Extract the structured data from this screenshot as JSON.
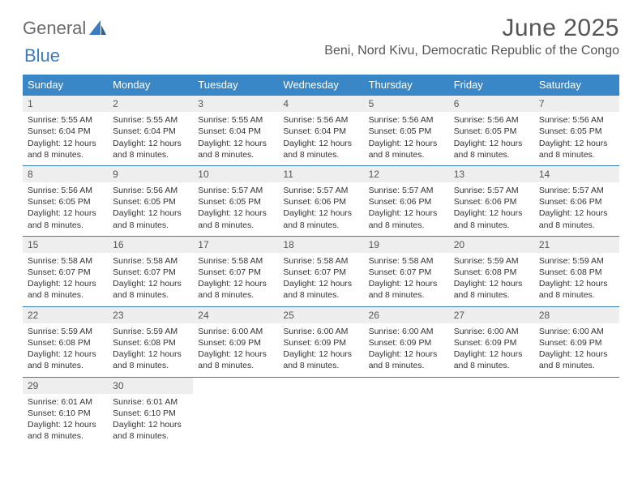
{
  "brand": {
    "name_a": "General",
    "name_b": "Blue"
  },
  "colors": {
    "header_bg": "#3a87c8",
    "header_text": "#ffffff",
    "rule": "#3a7cb8",
    "daynum_bg": "#eeeeee",
    "body_text": "#333333",
    "title_text": "#555555",
    "brand_gray": "#6b6b6b",
    "brand_blue": "#3a7cc4",
    "page_bg": "#ffffff"
  },
  "title": "June 2025",
  "location": "Beni, Nord Kivu, Democratic Republic of the Congo",
  "day_names": [
    "Sunday",
    "Monday",
    "Tuesday",
    "Wednesday",
    "Thursday",
    "Friday",
    "Saturday"
  ],
  "labels": {
    "sunrise": "Sunrise:",
    "sunset": "Sunset:",
    "daylight_a": "Daylight:",
    "daylight_b_prefix": "and",
    "daylight_hours_word": "hours",
    "daylight_minutes_word": "minutes."
  },
  "weeks": [
    [
      {
        "n": 1,
        "sunrise": "5:55 AM",
        "sunset": "6:04 PM",
        "dl_h": 12,
        "dl_m": 8
      },
      {
        "n": 2,
        "sunrise": "5:55 AM",
        "sunset": "6:04 PM",
        "dl_h": 12,
        "dl_m": 8
      },
      {
        "n": 3,
        "sunrise": "5:55 AM",
        "sunset": "6:04 PM",
        "dl_h": 12,
        "dl_m": 8
      },
      {
        "n": 4,
        "sunrise": "5:56 AM",
        "sunset": "6:04 PM",
        "dl_h": 12,
        "dl_m": 8
      },
      {
        "n": 5,
        "sunrise": "5:56 AM",
        "sunset": "6:05 PM",
        "dl_h": 12,
        "dl_m": 8
      },
      {
        "n": 6,
        "sunrise": "5:56 AM",
        "sunset": "6:05 PM",
        "dl_h": 12,
        "dl_m": 8
      },
      {
        "n": 7,
        "sunrise": "5:56 AM",
        "sunset": "6:05 PM",
        "dl_h": 12,
        "dl_m": 8
      }
    ],
    [
      {
        "n": 8,
        "sunrise": "5:56 AM",
        "sunset": "6:05 PM",
        "dl_h": 12,
        "dl_m": 8
      },
      {
        "n": 9,
        "sunrise": "5:56 AM",
        "sunset": "6:05 PM",
        "dl_h": 12,
        "dl_m": 8
      },
      {
        "n": 10,
        "sunrise": "5:57 AM",
        "sunset": "6:05 PM",
        "dl_h": 12,
        "dl_m": 8
      },
      {
        "n": 11,
        "sunrise": "5:57 AM",
        "sunset": "6:06 PM",
        "dl_h": 12,
        "dl_m": 8
      },
      {
        "n": 12,
        "sunrise": "5:57 AM",
        "sunset": "6:06 PM",
        "dl_h": 12,
        "dl_m": 8
      },
      {
        "n": 13,
        "sunrise": "5:57 AM",
        "sunset": "6:06 PM",
        "dl_h": 12,
        "dl_m": 8
      },
      {
        "n": 14,
        "sunrise": "5:57 AM",
        "sunset": "6:06 PM",
        "dl_h": 12,
        "dl_m": 8
      }
    ],
    [
      {
        "n": 15,
        "sunrise": "5:58 AM",
        "sunset": "6:07 PM",
        "dl_h": 12,
        "dl_m": 8
      },
      {
        "n": 16,
        "sunrise": "5:58 AM",
        "sunset": "6:07 PM",
        "dl_h": 12,
        "dl_m": 8
      },
      {
        "n": 17,
        "sunrise": "5:58 AM",
        "sunset": "6:07 PM",
        "dl_h": 12,
        "dl_m": 8
      },
      {
        "n": 18,
        "sunrise": "5:58 AM",
        "sunset": "6:07 PM",
        "dl_h": 12,
        "dl_m": 8
      },
      {
        "n": 19,
        "sunrise": "5:58 AM",
        "sunset": "6:07 PM",
        "dl_h": 12,
        "dl_m": 8
      },
      {
        "n": 20,
        "sunrise": "5:59 AM",
        "sunset": "6:08 PM",
        "dl_h": 12,
        "dl_m": 8
      },
      {
        "n": 21,
        "sunrise": "5:59 AM",
        "sunset": "6:08 PM",
        "dl_h": 12,
        "dl_m": 8
      }
    ],
    [
      {
        "n": 22,
        "sunrise": "5:59 AM",
        "sunset": "6:08 PM",
        "dl_h": 12,
        "dl_m": 8
      },
      {
        "n": 23,
        "sunrise": "5:59 AM",
        "sunset": "6:08 PM",
        "dl_h": 12,
        "dl_m": 8
      },
      {
        "n": 24,
        "sunrise": "6:00 AM",
        "sunset": "6:09 PM",
        "dl_h": 12,
        "dl_m": 8
      },
      {
        "n": 25,
        "sunrise": "6:00 AM",
        "sunset": "6:09 PM",
        "dl_h": 12,
        "dl_m": 8
      },
      {
        "n": 26,
        "sunrise": "6:00 AM",
        "sunset": "6:09 PM",
        "dl_h": 12,
        "dl_m": 8
      },
      {
        "n": 27,
        "sunrise": "6:00 AM",
        "sunset": "6:09 PM",
        "dl_h": 12,
        "dl_m": 8
      },
      {
        "n": 28,
        "sunrise": "6:00 AM",
        "sunset": "6:09 PM",
        "dl_h": 12,
        "dl_m": 8
      }
    ],
    [
      {
        "n": 29,
        "sunrise": "6:01 AM",
        "sunset": "6:10 PM",
        "dl_h": 12,
        "dl_m": 8
      },
      {
        "n": 30,
        "sunrise": "6:01 AM",
        "sunset": "6:10 PM",
        "dl_h": 12,
        "dl_m": 8
      },
      null,
      null,
      null,
      null,
      null
    ]
  ]
}
